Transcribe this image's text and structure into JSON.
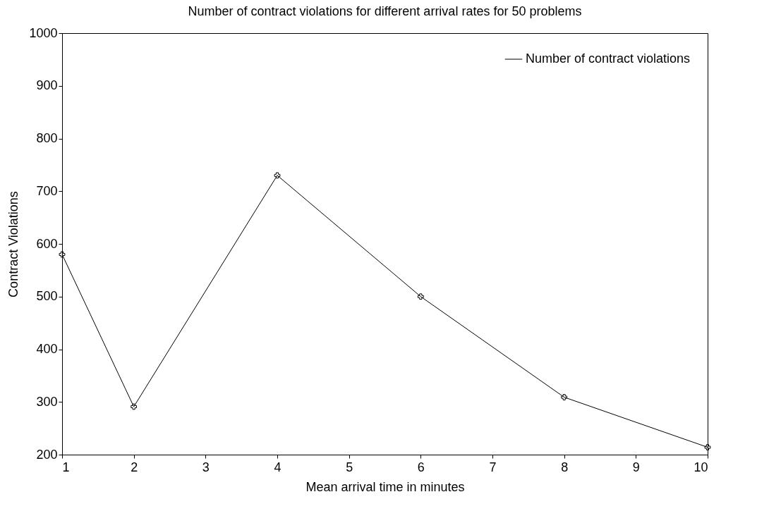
{
  "chart_data": {
    "type": "line",
    "title": "Number of contract violations for different arrival rates for 50 problems",
    "xlabel": "Mean arrival time in minutes",
    "ylabel": "Contract Violations",
    "x": [
      1,
      2,
      4,
      6,
      8,
      10
    ],
    "series": [
      {
        "name": "Number of contract violations",
        "color": "#000000",
        "values": [
          580,
          291,
          730,
          500,
          309,
          214
        ]
      }
    ],
    "xlim": [
      1,
      10
    ],
    "xticks": [
      1,
      2,
      3,
      4,
      5,
      6,
      7,
      8,
      9,
      10
    ],
    "ylim": [
      200,
      1000
    ],
    "yticks": [
      200,
      300,
      400,
      500,
      600,
      700,
      800,
      900,
      1000
    ],
    "grid": false,
    "legend": "top right",
    "marker": "cross",
    "line_style": "solid"
  }
}
